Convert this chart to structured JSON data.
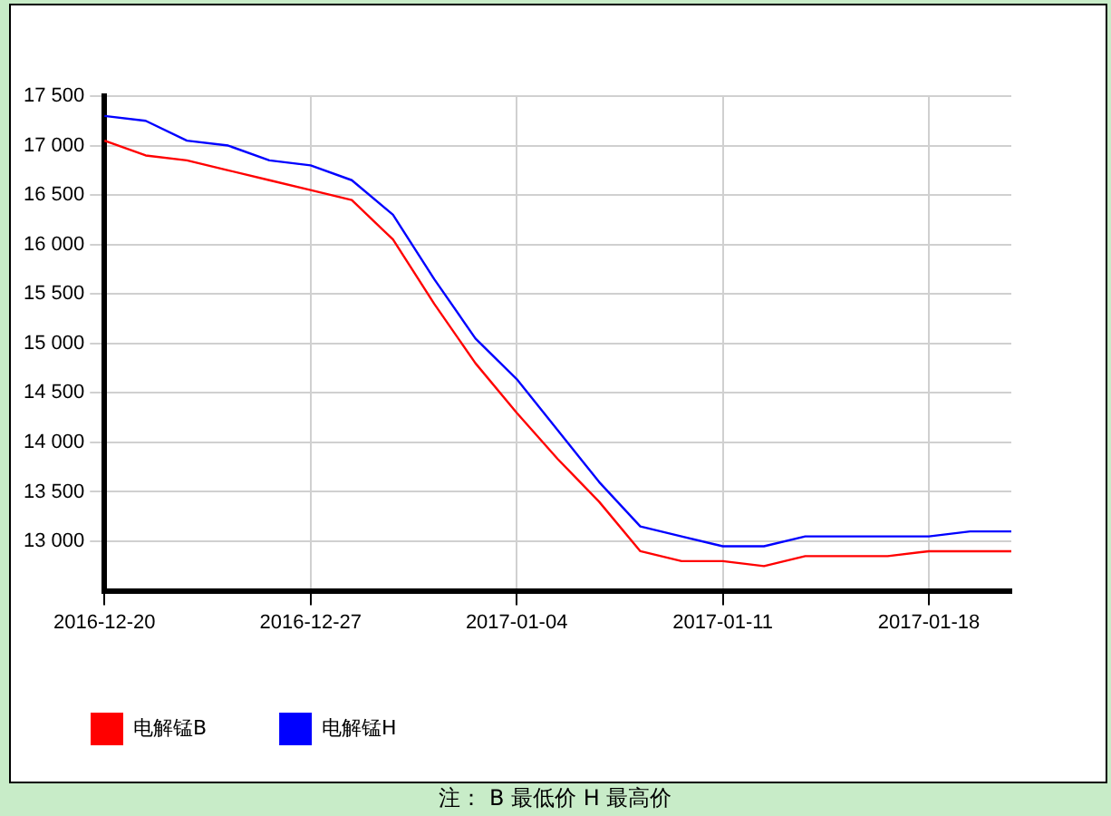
{
  "chart_data": {
    "type": "line",
    "categories": [
      "2016-12-20",
      null,
      null,
      null,
      null,
      "2016-12-27",
      null,
      null,
      null,
      null,
      "2017-01-04",
      null,
      null,
      null,
      null,
      "2017-01-11",
      null,
      null,
      null,
      null,
      "2017-01-18",
      null,
      null
    ],
    "series": [
      {
        "name": "电解锰B",
        "color": "#ff0000",
        "values": [
          17050,
          16900,
          16850,
          16750,
          16650,
          16550,
          16450,
          16050,
          15400,
          14800,
          14300,
          13830,
          13400,
          12900,
          12800,
          12800,
          12750,
          12850,
          12850,
          12850,
          12900,
          12900,
          12900
        ]
      },
      {
        "name": "电解锰H",
        "color": "#0000ff",
        "values": [
          17300,
          17250,
          17050,
          17000,
          16850,
          16800,
          16650,
          16300,
          15650,
          15050,
          14640,
          14120,
          13600,
          13150,
          13050,
          12950,
          12950,
          13050,
          13050,
          13050,
          13050,
          13100,
          13100
        ]
      }
    ],
    "ylim": [
      12500,
      17500
    ],
    "yticks": [
      {
        "value": 13000,
        "label": "13 000"
      },
      {
        "value": 13500,
        "label": "13 500"
      },
      {
        "value": 14000,
        "label": "14 000"
      },
      {
        "value": 14500,
        "label": "14 500"
      },
      {
        "value": 15000,
        "label": "15 000"
      },
      {
        "value": 15500,
        "label": "15 500"
      },
      {
        "value": 16000,
        "label": "16 000"
      },
      {
        "value": 16500,
        "label": "16 500"
      },
      {
        "value": 17000,
        "label": "17 000"
      },
      {
        "value": 17500,
        "label": "17 500"
      }
    ],
    "grid": true,
    "legend": "bottom left",
    "marker": "none",
    "line_style": "solid",
    "annotations": [
      "注： B 最低价 H 最高价"
    ]
  }
}
